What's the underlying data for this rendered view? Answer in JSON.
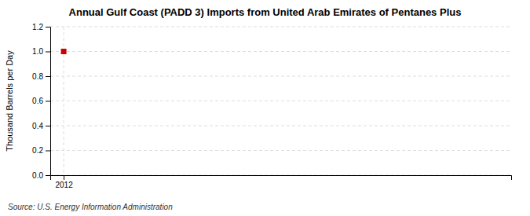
{
  "chart_data": {
    "type": "scatter",
    "title": "Annual Gulf Coast (PADD 3) Imports from United Arab Emirates of Pentanes Plus",
    "y_label": "Thousand Barrels per Day",
    "annotations": [
      "Source: U.S. Energy Information Administration"
    ],
    "x": [
      2012
    ],
    "values": [
      1.0
    ],
    "color": "#cc0000",
    "marker": "square",
    "xlim": [
      2011.7,
      2022
    ],
    "xticks": [
      2012
    ],
    "ylim": [
      0.0,
      1.2
    ],
    "yticks": [
      {
        "value": 0,
        "label": "0.0"
      },
      0.2,
      0.4,
      0.6,
      0.8,
      {
        "value": 1,
        "label": "1.0"
      },
      1.2
    ],
    "grid": true
  }
}
